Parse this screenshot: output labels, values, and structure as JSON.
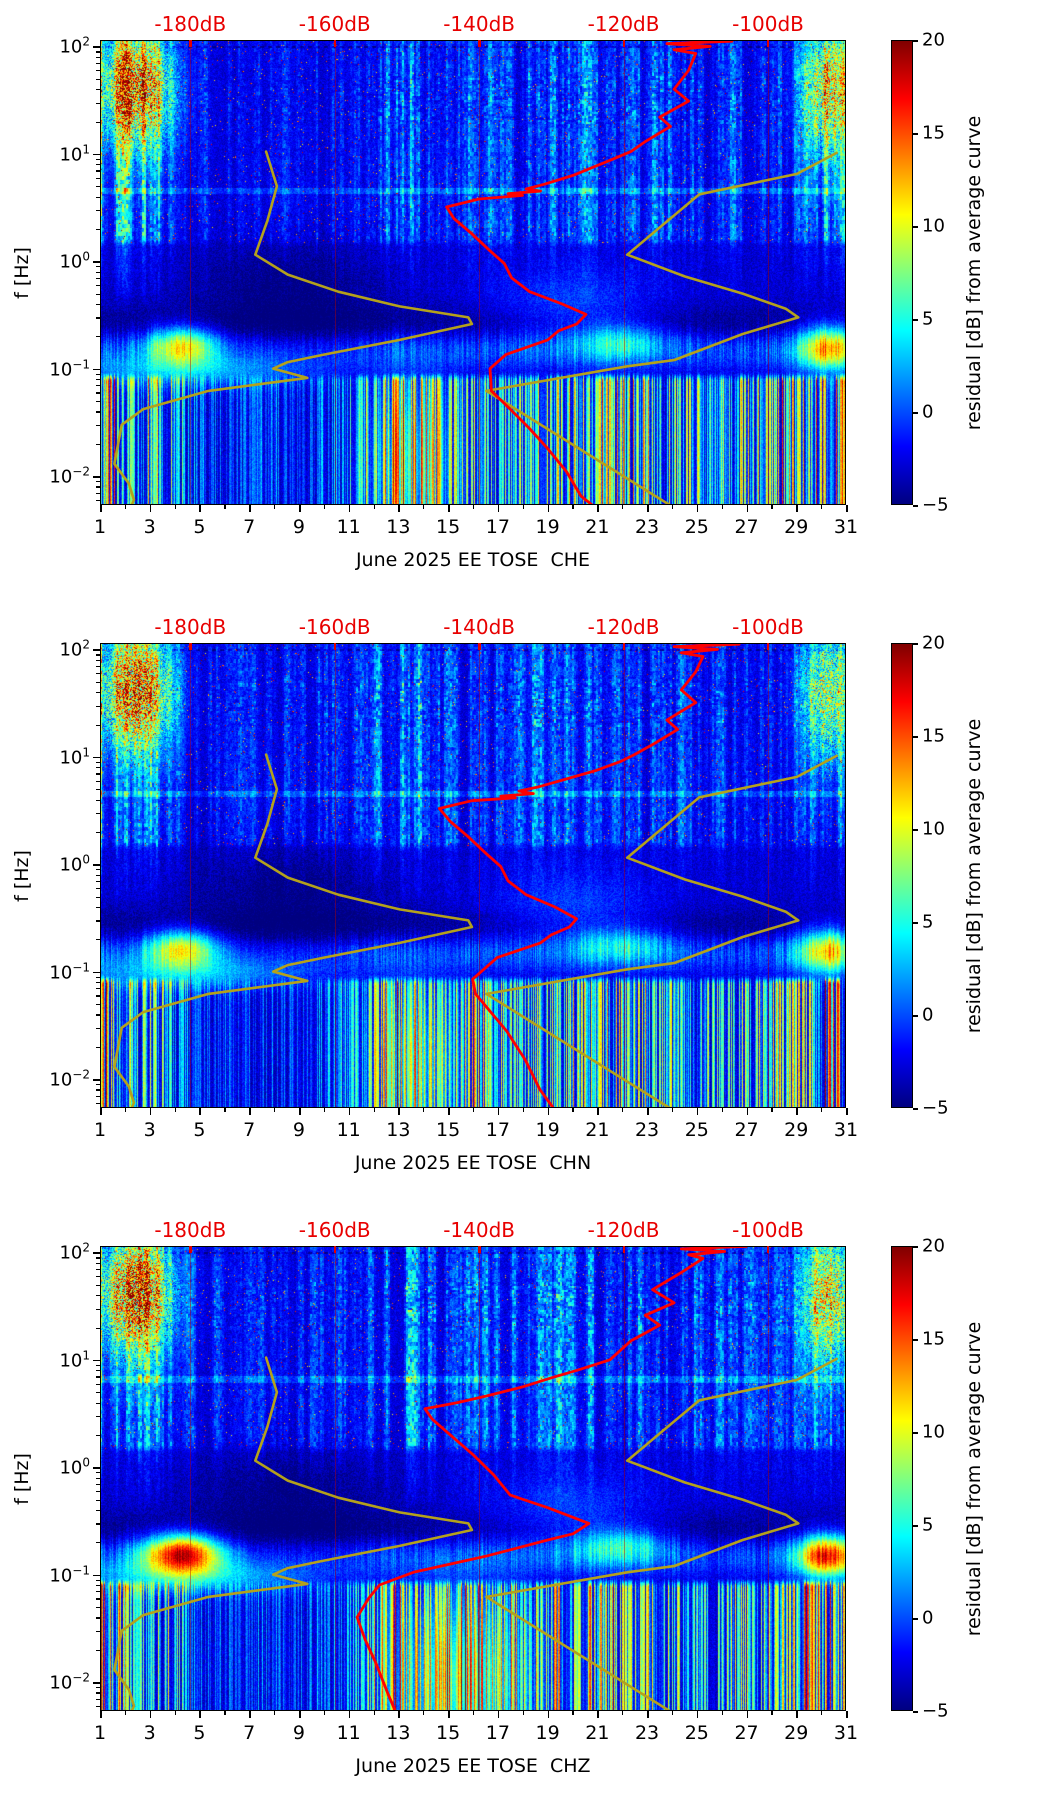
{
  "page": {
    "background": "#ffffff",
    "kind": "matplotlib-figure",
    "n_panels": 3
  },
  "colors": {
    "top_axis_red": "#e80000",
    "station_curve_red": "#ff0000",
    "model_curve_yellow": "#b4a11c",
    "text": "#000000",
    "colormap": "jet"
  },
  "chart_data": {
    "type": "heatmap",
    "subtype": "seismic-noise-residual-spectrogram",
    "panels": [
      {
        "station_channel": "CHE",
        "xlabel": "June 2025 EE TOSE  CHE",
        "station_curve_db_hz": [
          [
            -111,
            130
          ],
          [
            -103,
            122
          ],
          [
            -115,
            118
          ],
          [
            -105,
            112
          ],
          [
            -114,
            106
          ],
          [
            -108,
            100
          ],
          [
            -113,
            93
          ],
          [
            -110,
            86
          ],
          [
            -111,
            60
          ],
          [
            -113,
            40
          ],
          [
            -111,
            31
          ],
          [
            -115,
            22
          ],
          [
            -113.5,
            18
          ],
          [
            -117,
            13
          ],
          [
            -119,
            10.5
          ],
          [
            -121,
            9.2
          ],
          [
            -124,
            7.6
          ],
          [
            -127,
            6.3
          ],
          [
            -131,
            5.2
          ],
          [
            -133.5,
            4.7
          ],
          [
            -131.5,
            4.5
          ],
          [
            -136,
            4.25
          ],
          [
            -134,
            4.1
          ],
          [
            -140,
            3.8
          ],
          [
            -144.5,
            3.2
          ],
          [
            -143.5,
            2.5
          ],
          [
            -141,
            1.8
          ],
          [
            -138.5,
            1.25
          ],
          [
            -136.5,
            0.95
          ],
          [
            -135.5,
            0.7
          ],
          [
            -133,
            0.52
          ],
          [
            -128.5,
            0.4
          ],
          [
            -125.2,
            0.32
          ],
          [
            -126.5,
            0.26
          ],
          [
            -129,
            0.225
          ],
          [
            -130.5,
            0.185
          ],
          [
            -136.3,
            0.135
          ],
          [
            -138.5,
            0.1
          ],
          [
            -138.3,
            0.062
          ],
          [
            -135.7,
            0.042
          ],
          [
            -133.1,
            0.028
          ],
          [
            -130.5,
            0.018
          ],
          [
            -127.9,
            0.011
          ],
          [
            -125.9,
            0.0065
          ],
          [
            -123.1,
            0.0046
          ]
        ]
      },
      {
        "station_channel": "CHN",
        "xlabel": "June 2025 EE TOSE  CHN",
        "station_curve_db_hz": [
          [
            -110,
            130
          ],
          [
            -102,
            122
          ],
          [
            -114,
            118
          ],
          [
            -104,
            112
          ],
          [
            -113,
            106
          ],
          [
            -107,
            100
          ],
          [
            -112,
            93
          ],
          [
            -109,
            86
          ],
          [
            -110,
            62
          ],
          [
            -112,
            42
          ],
          [
            -110,
            32
          ],
          [
            -114,
            22
          ],
          [
            -112.5,
            18
          ],
          [
            -116,
            13
          ],
          [
            -118.5,
            10.5
          ],
          [
            -120.5,
            9
          ],
          [
            -124,
            7.4
          ],
          [
            -128,
            6.2
          ],
          [
            -132,
            5.2
          ],
          [
            -134.5,
            4.8
          ],
          [
            -132.5,
            4.55
          ],
          [
            -137,
            4.3
          ],
          [
            -135,
            4.15
          ],
          [
            -141,
            3.9
          ],
          [
            -145.5,
            3.3
          ],
          [
            -144,
            2.5
          ],
          [
            -141.5,
            1.8
          ],
          [
            -139,
            1.25
          ],
          [
            -137,
            0.95
          ],
          [
            -136,
            0.7
          ],
          [
            -133.5,
            0.52
          ],
          [
            -129.5,
            0.4
          ],
          [
            -126.5,
            0.31
          ],
          [
            -127.5,
            0.26
          ],
          [
            -130,
            0.22
          ],
          [
            -131.5,
            0.185
          ],
          [
            -137.5,
            0.135
          ],
          [
            -140.9,
            0.085
          ],
          [
            -140.5,
            0.062
          ],
          [
            -136.2,
            0.028
          ],
          [
            -133.6,
            0.015
          ],
          [
            -131.6,
            0.008
          ],
          [
            -129,
            0.0046
          ]
        ]
      },
      {
        "station_channel": "CHZ",
        "xlabel": "June 2025 EE TOSE  CHZ",
        "station_curve_db_hz": [
          [
            -110,
            130
          ],
          [
            -101,
            124
          ],
          [
            -113,
            120
          ],
          [
            -103,
            114
          ],
          [
            -112,
            108
          ],
          [
            -106,
            102
          ],
          [
            -111,
            95
          ],
          [
            -109,
            88
          ],
          [
            -112,
            65
          ],
          [
            -116,
            45
          ],
          [
            -113,
            34
          ],
          [
            -117,
            26
          ],
          [
            -115,
            21
          ],
          [
            -119,
            15
          ],
          [
            -121.9,
            10
          ],
          [
            -126.4,
            8
          ],
          [
            -130,
            6.8
          ],
          [
            -134,
            5.6
          ],
          [
            -139,
            4.6
          ],
          [
            -143,
            4
          ],
          [
            -147.5,
            3.5
          ],
          [
            -146.5,
            2.8
          ],
          [
            -144,
            2
          ],
          [
            -140.8,
            1.3
          ],
          [
            -138,
            0.85
          ],
          [
            -135.7,
            0.55
          ],
          [
            -130.5,
            0.42
          ],
          [
            -124.8,
            0.3
          ],
          [
            -127,
            0.24
          ],
          [
            -130.5,
            0.21
          ],
          [
            -138.8,
            0.15
          ],
          [
            -149.1,
            0.105
          ],
          [
            -153.8,
            0.08
          ],
          [
            -155.3,
            0.06
          ],
          [
            -156.9,
            0.04
          ],
          [
            -155.8,
            0.025
          ],
          [
            -154.3,
            0.015
          ],
          [
            -152.7,
            0.008
          ],
          [
            -151.2,
            0.0046
          ]
        ]
      }
    ],
    "model_curves": {
      "low_noise_model_db_hz": [
        [
          -169.5,
          10.5
        ],
        [
          -168,
          5
        ],
        [
          -169.3,
          2.4
        ],
        [
          -171,
          1.15
        ],
        [
          -166.5,
          0.75
        ],
        [
          -159.5,
          0.52
        ],
        [
          -151,
          0.38
        ],
        [
          -141.5,
          0.3
        ],
        [
          -141,
          0.26
        ],
        [
          -151,
          0.185
        ],
        [
          -161.5,
          0.135
        ],
        [
          -166.5,
          0.115
        ],
        [
          -168.5,
          0.1
        ],
        [
          -163.8,
          0.082
        ],
        [
          -177.5,
          0.062
        ],
        [
          -186.5,
          0.042
        ],
        [
          -189.5,
          0.03
        ],
        [
          -190.5,
          0.013
        ],
        [
          -188.5,
          0.0085
        ],
        [
          -187.8,
          0.006
        ],
        [
          -188.5,
          0.0046
        ]
      ],
      "high_noise_model_db_hz": [
        [
          -90.5,
          10.2
        ],
        [
          -96,
          6.5
        ],
        [
          -109.5,
          4.2
        ],
        [
          -119.5,
          1.15
        ],
        [
          -111.5,
          0.72
        ],
        [
          -103.5,
          0.5
        ],
        [
          -97.5,
          0.36
        ],
        [
          -95.8,
          0.3
        ],
        [
          -103.5,
          0.21
        ],
        [
          -113,
          0.12
        ],
        [
          -119.5,
          0.105
        ],
        [
          -139,
          0.062
        ],
        [
          -112,
          0.0046
        ]
      ]
    },
    "x_axis": {
      "range_days": [
        1,
        31
      ],
      "major_ticks": [
        1,
        3,
        5,
        7,
        9,
        11,
        13,
        15,
        17,
        19,
        21,
        23,
        25,
        27,
        29,
        31
      ],
      "major_tick_labels": [
        "1",
        "3",
        "5",
        "7",
        "9",
        "11",
        "13",
        "15",
        "17",
        "19",
        "21",
        "23",
        "25",
        "27",
        "29",
        "31"
      ],
      "minor_ticks": [
        2,
        4,
        6,
        8,
        10,
        12,
        14,
        16,
        18,
        20,
        22,
        24,
        26,
        28,
        30
      ]
    },
    "y_axis": {
      "label": "f [Hz]",
      "scale": "log",
      "range_hz": [
        0.0054,
        115
      ],
      "decade_tick_exponents": [
        2,
        1,
        0,
        -1,
        -2
      ]
    },
    "top_axis": {
      "ticks_db": [
        -180,
        -160,
        -140,
        -120,
        -100
      ],
      "labels": [
        "-180dB",
        "-160dB",
        "-140dB",
        "-120dB",
        "-100dB"
      ],
      "range_db": [
        -192.5,
        -89.2
      ]
    },
    "colorbar": {
      "label": "residual [dB] from average curve",
      "range": [
        -5,
        20
      ],
      "ticks": [
        20,
        15,
        10,
        5,
        0,
        -5
      ],
      "tick_labels": [
        "20",
        "15",
        "10",
        "5",
        "0",
        "−5"
      ],
      "colormap": "jet"
    },
    "features_read_from_image": [
      "dense red noise burst cluster days 1.5-3.5 at 15-100 Hz (all panels)",
      "secondary microseism hot spot days 3-5.5 at 0.12-0.2 Hz, strongest on CHZ",
      "strong orange/red columns days 29-31 at 0.08-0.25 Hz and at high frequencies",
      "dark navy quiet notch band 0.2-0.4 Hz across most days",
      "alternating bright yellow / dark navy vertical stripes below 0.08 Hz",
      "quiet interval roughly days 5-11 at low frequencies"
    ]
  },
  "render_params": {
    "seeds": [
      101,
      202,
      303
    ],
    "envelopes": {
      "high": [
        [
          1,
          0.9
        ],
        [
          2,
          1.0
        ],
        [
          3.5,
          0.95
        ],
        [
          4,
          0.45
        ],
        [
          5,
          0.3
        ],
        [
          7,
          0.35
        ],
        [
          9,
          0.3
        ],
        [
          10,
          0.45
        ],
        [
          12,
          0.5
        ],
        [
          13,
          0.75
        ],
        [
          14,
          0.7
        ],
        [
          15,
          0.6
        ],
        [
          16,
          0.65
        ],
        [
          17,
          0.6
        ],
        [
          18,
          0.6
        ],
        [
          19,
          0.7
        ],
        [
          20,
          0.65
        ],
        [
          21,
          0.6
        ],
        [
          22,
          0.55
        ],
        [
          23,
          0.6
        ],
        [
          24,
          0.65
        ],
        [
          25,
          0.6
        ],
        [
          26,
          0.55
        ],
        [
          27,
          0.5
        ],
        [
          28,
          0.35
        ],
        [
          29,
          0.55
        ],
        [
          30,
          0.8
        ],
        [
          31,
          0.75
        ]
      ],
      "low": [
        [
          1,
          0.85
        ],
        [
          1.8,
          0.7
        ],
        [
          2.5,
          0.55
        ],
        [
          3,
          0.6
        ],
        [
          4,
          0.5
        ],
        [
          5,
          0.25
        ],
        [
          6,
          0.2
        ],
        [
          8,
          0.25
        ],
        [
          9,
          0.2
        ],
        [
          10,
          0.3
        ],
        [
          11,
          0.35
        ],
        [
          12,
          0.6
        ],
        [
          13,
          0.75
        ],
        [
          14,
          0.6
        ],
        [
          15,
          0.55
        ],
        [
          16,
          0.7
        ],
        [
          17,
          0.6
        ],
        [
          18,
          0.5
        ],
        [
          19,
          0.65
        ],
        [
          20,
          0.7
        ],
        [
          21,
          0.75
        ],
        [
          22,
          0.7
        ],
        [
          23,
          0.65
        ],
        [
          24,
          0.6
        ],
        [
          25,
          0.55
        ],
        [
          26,
          0.5
        ],
        [
          27,
          0.65
        ],
        [
          28,
          0.7
        ],
        [
          29,
          0.75
        ],
        [
          30,
          0.8
        ],
        [
          31,
          0.85
        ]
      ],
      "mic": [
        [
          1,
          0.3
        ],
        [
          3,
          0.5
        ],
        [
          5,
          0.4
        ],
        [
          8,
          0.3
        ],
        [
          12,
          0.35
        ],
        [
          15,
          0.4
        ],
        [
          19,
          0.5
        ],
        [
          22,
          0.55
        ],
        [
          24,
          0.45
        ],
        [
          27,
          0.4
        ],
        [
          29,
          0.6
        ],
        [
          31,
          0.7
        ]
      ]
    },
    "panel_blobs": [
      [
        [
          2.4,
          1.0,
          1.62,
          0.4,
          15,
          1
        ],
        [
          30.3,
          0.75,
          1.6,
          0.45,
          11,
          1
        ],
        [
          4.3,
          1.0,
          -0.78,
          0.13,
          12,
          0
        ],
        [
          30.2,
          0.8,
          -0.8,
          0.15,
          13,
          0
        ],
        [
          22.0,
          1.3,
          -0.74,
          0.12,
          5,
          0
        ],
        [
          4.5,
          3.5,
          -1.02,
          0.1,
          5,
          0
        ],
        [
          13.6,
          1.2,
          -1.85,
          0.5,
          5,
          0
        ],
        [
          8.5,
          2.8,
          -0.25,
          0.3,
          -2,
          0
        ],
        [
          20.0,
          2.2,
          -0.45,
          0.25,
          3,
          0
        ]
      ],
      [
        [
          2.4,
          1.0,
          1.62,
          0.4,
          15,
          1
        ],
        [
          30.3,
          0.75,
          1.6,
          0.45,
          10,
          1
        ],
        [
          4.3,
          1.0,
          -0.78,
          0.13,
          12,
          0
        ],
        [
          30.2,
          0.8,
          -0.8,
          0.15,
          12,
          0
        ],
        [
          22.0,
          1.3,
          -0.74,
          0.12,
          5,
          0
        ],
        [
          4.5,
          3.5,
          -1.02,
          0.1,
          5,
          0
        ],
        [
          13.6,
          1.2,
          -1.85,
          0.5,
          5,
          0
        ],
        [
          8.5,
          2.8,
          -0.25,
          0.3,
          -2,
          0
        ],
        [
          20.0,
          2.2,
          -0.45,
          0.25,
          3,
          0
        ]
      ],
      [
        [
          2.4,
          1.0,
          1.62,
          0.4,
          16,
          1
        ],
        [
          30.3,
          0.75,
          1.58,
          0.45,
          11,
          1
        ],
        [
          4.3,
          1.1,
          -0.8,
          0.13,
          19,
          0
        ],
        [
          30.2,
          0.8,
          -0.82,
          0.14,
          17,
          0
        ],
        [
          22.0,
          1.3,
          -0.72,
          0.12,
          6,
          0
        ],
        [
          4.5,
          3.5,
          -1.02,
          0.1,
          6,
          0
        ],
        [
          15.5,
          1.8,
          -1.95,
          0.55,
          8,
          0
        ],
        [
          8.5,
          2.8,
          -0.25,
          0.3,
          -2,
          0
        ],
        [
          20.0,
          2.2,
          -0.45,
          0.25,
          3,
          0
        ]
      ]
    ],
    "hline_per_panel": [
      [
        0.66,
        3
      ],
      [
        0.66,
        3
      ],
      [
        0.82,
        3
      ]
    ]
  }
}
